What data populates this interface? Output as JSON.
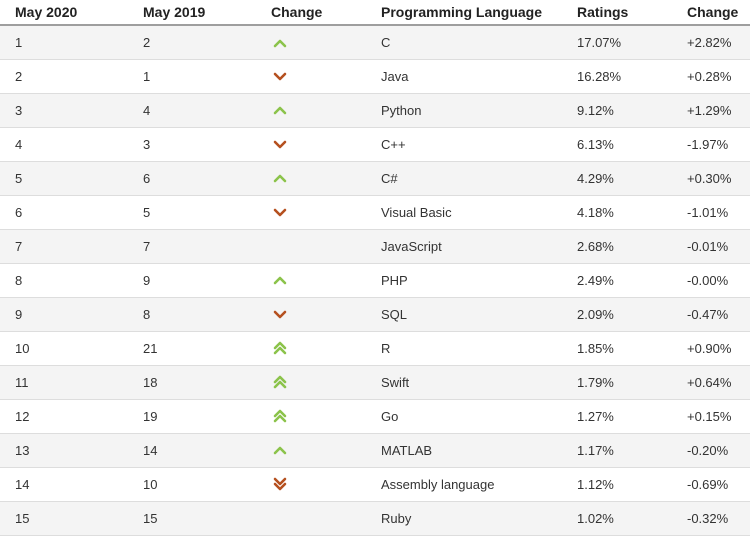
{
  "colors": {
    "up": "#8bc34a",
    "down": "#b5501f"
  },
  "headers": [
    "May 2020",
    "May 2019",
    "Change",
    "Programming Language",
    "Ratings",
    "Change"
  ],
  "rows": [
    {
      "rank2020": "1",
      "rank2019": "2",
      "trend": "up",
      "language": "C",
      "rating": "17.07%",
      "change": "+2.82%"
    },
    {
      "rank2020": "2",
      "rank2019": "1",
      "trend": "down",
      "language": "Java",
      "rating": "16.28%",
      "change": "+0.28%"
    },
    {
      "rank2020": "3",
      "rank2019": "4",
      "trend": "up",
      "language": "Python",
      "rating": "9.12%",
      "change": "+1.29%"
    },
    {
      "rank2020": "4",
      "rank2019": "3",
      "trend": "down",
      "language": "C++",
      "rating": "6.13%",
      "change": "-1.97%"
    },
    {
      "rank2020": "5",
      "rank2019": "6",
      "trend": "up",
      "language": "C#",
      "rating": "4.29%",
      "change": "+0.30%"
    },
    {
      "rank2020": "6",
      "rank2019": "5",
      "trend": "down",
      "language": "Visual Basic",
      "rating": "4.18%",
      "change": "-1.01%"
    },
    {
      "rank2020": "7",
      "rank2019": "7",
      "trend": "none",
      "language": "JavaScript",
      "rating": "2.68%",
      "change": "-0.01%"
    },
    {
      "rank2020": "8",
      "rank2019": "9",
      "trend": "up",
      "language": "PHP",
      "rating": "2.49%",
      "change": "-0.00%"
    },
    {
      "rank2020": "9",
      "rank2019": "8",
      "trend": "down",
      "language": "SQL",
      "rating": "2.09%",
      "change": "-0.47%"
    },
    {
      "rank2020": "10",
      "rank2019": "21",
      "trend": "double-up",
      "language": "R",
      "rating": "1.85%",
      "change": "+0.90%"
    },
    {
      "rank2020": "11",
      "rank2019": "18",
      "trend": "double-up",
      "language": "Swift",
      "rating": "1.79%",
      "change": "+0.64%"
    },
    {
      "rank2020": "12",
      "rank2019": "19",
      "trend": "double-up",
      "language": "Go",
      "rating": "1.27%",
      "change": "+0.15%"
    },
    {
      "rank2020": "13",
      "rank2019": "14",
      "trend": "up",
      "language": "MATLAB",
      "rating": "1.17%",
      "change": "-0.20%"
    },
    {
      "rank2020": "14",
      "rank2019": "10",
      "trend": "double-down",
      "language": "Assembly language",
      "rating": "1.12%",
      "change": "-0.69%"
    },
    {
      "rank2020": "15",
      "rank2019": "15",
      "trend": "none",
      "language": "Ruby",
      "rating": "1.02%",
      "change": "-0.32%"
    }
  ]
}
